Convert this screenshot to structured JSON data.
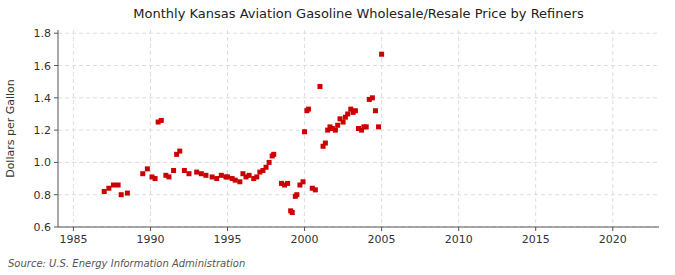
{
  "chart_data": {
    "type": "scatter",
    "title": "Monthly Kansas Aviation Gasoline Wholesale/Resale Price by Refiners",
    "ylabel": "Dollars per Gallon",
    "source": "Source: U.S. Energy Information Administration",
    "color": "#cc0000",
    "marker": "square",
    "grid": true,
    "xlim": [
      1984,
      2023
    ],
    "ylim": [
      0.6,
      1.82
    ],
    "xticks": [
      1985,
      1990,
      1995,
      2000,
      2005,
      2010,
      2015,
      2020
    ],
    "yticks": [
      0.6,
      0.8,
      {
        "value": 1.0,
        "label": "1.0"
      },
      1.2,
      1.4,
      1.6,
      1.8
    ],
    "x": [
      1987.0,
      1987.3,
      1987.6,
      1987.9,
      1988.1,
      1988.5,
      1989.5,
      1989.8,
      1990.1,
      1990.3,
      1990.5,
      1990.7,
      1991.0,
      1991.2,
      1991.5,
      1991.7,
      1991.9,
      1992.2,
      1992.5,
      1993.0,
      1993.3,
      1993.6,
      1994.0,
      1994.3,
      1994.6,
      1994.9,
      1995.0,
      1995.3,
      1995.5,
      1995.8,
      1996.0,
      1996.2,
      1996.4,
      1996.7,
      1996.9,
      1997.1,
      1997.3,
      1997.5,
      1997.7,
      1997.9,
      1998.0,
      1998.5,
      1998.7,
      1998.9,
      1999.1,
      1999.2,
      1999.4,
      1999.5,
      1999.7,
      1999.9,
      2000.0,
      2000.15,
      2000.25,
      2000.5,
      2000.7,
      2001.0,
      2001.2,
      2001.35,
      2001.5,
      2001.65,
      2001.8,
      2002.0,
      2002.15,
      2002.3,
      2002.5,
      2002.65,
      2002.8,
      2003.0,
      2003.15,
      2003.3,
      2003.5,
      2003.7,
      2003.85,
      2004.0,
      2004.2,
      2004.4,
      2004.6,
      2004.8,
      2005.0
    ],
    "values": [
      0.82,
      0.84,
      0.86,
      0.86,
      0.8,
      0.81,
      0.93,
      0.96,
      0.91,
      0.9,
      1.25,
      1.26,
      0.92,
      0.91,
      0.95,
      1.05,
      1.07,
      0.95,
      0.93,
      0.94,
      0.93,
      0.92,
      0.91,
      0.9,
      0.92,
      0.91,
      0.91,
      0.9,
      0.89,
      0.88,
      0.93,
      0.91,
      0.92,
      0.9,
      0.91,
      0.94,
      0.95,
      0.97,
      1.0,
      1.04,
      1.05,
      0.87,
      0.86,
      0.87,
      0.7,
      0.69,
      0.79,
      0.8,
      0.86,
      0.88,
      1.19,
      1.32,
      1.33,
      0.84,
      0.83,
      1.47,
      1.1,
      1.12,
      1.2,
      1.22,
      1.21,
      1.2,
      1.23,
      1.27,
      1.25,
      1.28,
      1.3,
      1.33,
      1.31,
      1.32,
      1.21,
      1.2,
      1.22,
      1.22,
      1.39,
      1.4,
      1.32,
      1.22,
      1.67
    ]
  }
}
